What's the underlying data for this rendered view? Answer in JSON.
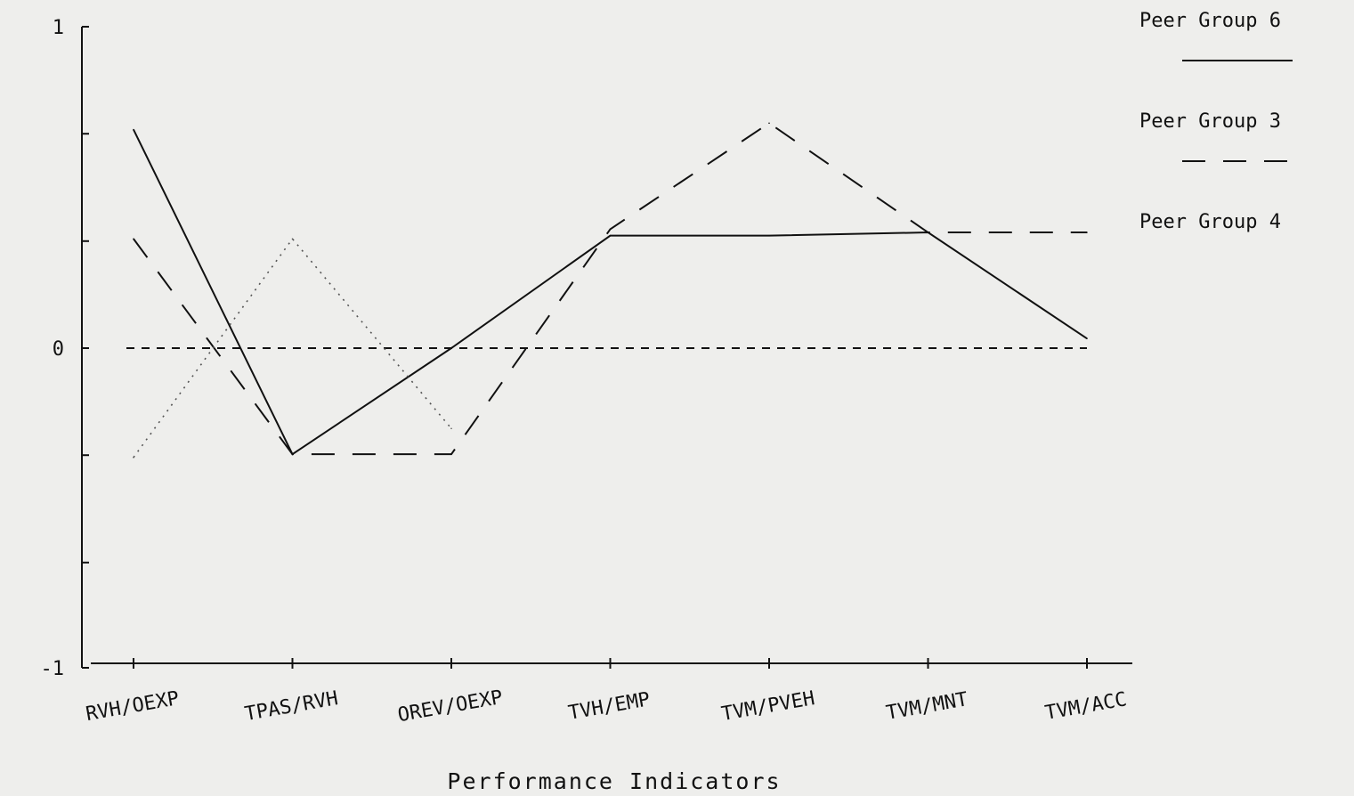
{
  "chart_data": {
    "type": "line",
    "title": "",
    "xlabel": "Performance Indicators",
    "ylabel": "",
    "categories": [
      "RVH/OEXP",
      "TPAS/RVH",
      "OREV/OEXP",
      "TVH/EMP",
      "TVM/PVEH",
      "TVM/MNT",
      "TVM/ACC"
    ],
    "ylim": [
      -1,
      1
    ],
    "yticks": [
      -1,
      -0.667,
      -0.333,
      0,
      0.333,
      0.667,
      1
    ],
    "ytick_labels": [
      "-1",
      "",
      "",
      "0",
      "",
      "",
      "1"
    ],
    "grid": false,
    "legend_position": "top-right",
    "baseline": {
      "y": 0,
      "style": "short-dash"
    },
    "series": [
      {
        "name": "Peer Group 6",
        "style": "solid",
        "color": "#111111",
        "values": [
          0.68,
          -0.33,
          0.0,
          0.35,
          0.35,
          0.36,
          0.03
        ]
      },
      {
        "name": "Peer Group 3",
        "style": "dashed",
        "color": "#111111",
        "values": [
          0.34,
          -0.33,
          -0.33,
          0.37,
          0.7,
          0.36,
          0.36
        ]
      },
      {
        "name": "Peer Group 4",
        "style": "dotted",
        "color": "#555555",
        "values": [
          -0.34,
          0.34,
          -0.25,
          null,
          null,
          null,
          null
        ]
      }
    ]
  }
}
